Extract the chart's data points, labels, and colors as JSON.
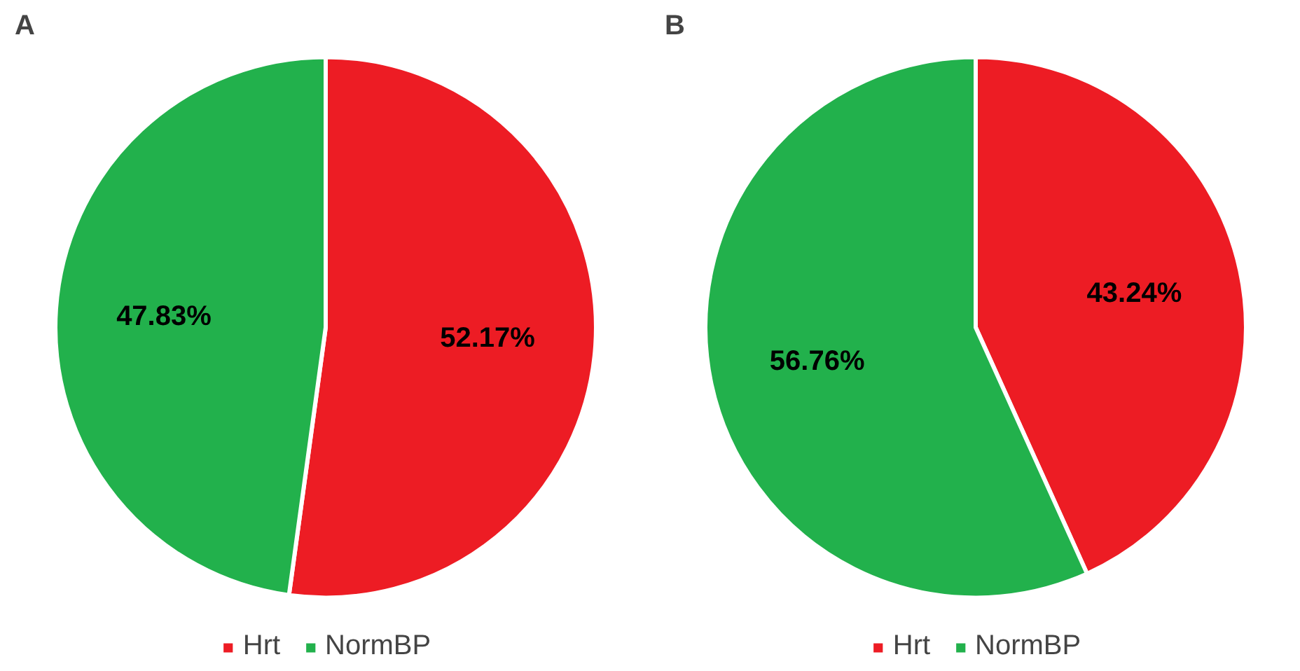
{
  "chart_data": [
    {
      "type": "pie",
      "title": "A",
      "categories": [
        "Hrt",
        "NormBP"
      ],
      "values": [
        52.17,
        47.83
      ],
      "colors": [
        "#ed1c24",
        "#22b14c"
      ],
      "value_labels": [
        "52.17%",
        "47.83%"
      ],
      "legend": "bottom"
    },
    {
      "type": "pie",
      "title": "B",
      "categories": [
        "Hrt",
        "NormBP"
      ],
      "values": [
        43.24,
        56.76
      ],
      "colors": [
        "#ed1c24",
        "#22b14c"
      ],
      "value_labels": [
        "43.24%",
        "56.76%"
      ],
      "legend": "bottom"
    }
  ]
}
